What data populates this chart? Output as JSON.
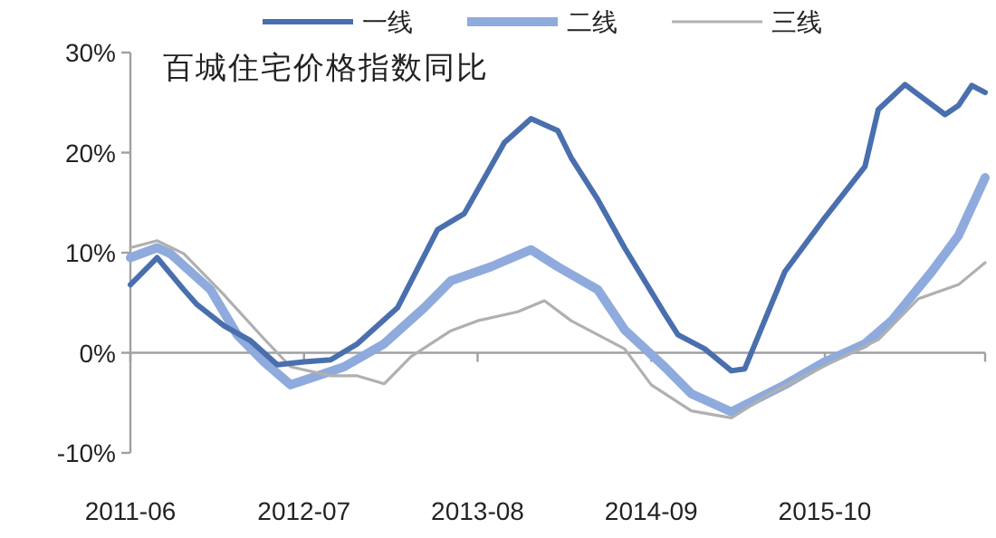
{
  "chart_data": {
    "type": "line",
    "title": "百城住宅价格指数同比",
    "legend": "top",
    "xlim": [
      "2011-06",
      "2016-10"
    ],
    "xticks": [
      "2011-06",
      "2012-07",
      "2013-08",
      "2014-09",
      "2015-10"
    ],
    "ylim": [
      -10,
      30
    ],
    "yticks": [
      {
        "value": -10,
        "label": "-10%"
      },
      {
        "value": 0,
        "label": "0%"
      },
      {
        "value": 10,
        "label": "10%"
      },
      {
        "value": 20,
        "label": "20%"
      },
      {
        "value": 30,
        "label": "30%"
      }
    ],
    "series": [
      {
        "name": "一线",
        "color": "#4a6fae",
        "x": [
          "2011-06",
          "2011-08",
          "2011-10",
          "2011-11",
          "2012-01",
          "2012-03",
          "2012-05",
          "2012-07",
          "2012-09",
          "2012-11",
          "2013-02",
          "2013-05",
          "2013-07",
          "2013-10",
          "2013-12",
          "2014-02",
          "2014-03",
          "2014-05",
          "2014-07",
          "2014-10",
          "2014-11",
          "2015-01",
          "2015-03",
          "2015-04",
          "2015-07",
          "2015-10",
          "2016-01",
          "2016-02",
          "2016-04",
          "2016-07",
          "2016-08",
          "2016-09",
          "2016-10"
        ],
        "values": [
          6.8,
          9.5,
          6.3,
          4.8,
          2.7,
          1.2,
          -1.2,
          -0.9,
          -0.7,
          0.9,
          4.5,
          12.3,
          13.9,
          21,
          23.4,
          22.2,
          19.5,
          15.3,
          10.5,
          3.9,
          1.8,
          0.4,
          -1.8,
          -1.6,
          8.1,
          13.5,
          18.6,
          24.3,
          26.8,
          23.8,
          24.7,
          26.7,
          26.0
        ]
      },
      {
        "name": "二线",
        "color": "#8faadc",
        "x": [
          "2011-06",
          "2011-08",
          "2011-09",
          "2011-12",
          "2012-02",
          "2012-04",
          "2012-06",
          "2012-08",
          "2012-10",
          "2013-01",
          "2013-04",
          "2013-06",
          "2013-09",
          "2013-12",
          "2014-02",
          "2014-05",
          "2014-07",
          "2014-10",
          "2014-12",
          "2015-03",
          "2015-07",
          "2015-10",
          "2016-01",
          "2016-03",
          "2016-06",
          "2016-08",
          "2016-10"
        ],
        "values": [
          9.5,
          10.5,
          9.9,
          6.3,
          1.8,
          -0.9,
          -3.2,
          -2.3,
          -1.4,
          0.9,
          4.5,
          7.2,
          8.6,
          10.3,
          8.6,
          6.3,
          2.3,
          -1.4,
          -4.1,
          -5.9,
          -3.2,
          -0.9,
          0.9,
          3.2,
          8.1,
          11.7,
          17.5
        ]
      },
      {
        "name": "三线",
        "color": "#b0b0b0",
        "x": [
          "2011-06",
          "2011-08",
          "2011-10",
          "2012-01",
          "2012-04",
          "2012-06",
          "2012-09",
          "2012-11",
          "2013-01",
          "2013-03",
          "2013-06",
          "2013-08",
          "2013-11",
          "2014-01",
          "2014-03",
          "2014-07",
          "2014-09",
          "2014-12",
          "2015-03",
          "2015-06",
          "2015-10",
          "2016-02",
          "2016-05",
          "2016-08",
          "2016-10"
        ],
        "values": [
          10.5,
          11.2,
          9.9,
          5.8,
          1.4,
          -1.4,
          -2.3,
          -2.3,
          -3.1,
          -0.4,
          2.2,
          3.2,
          4.1,
          5.2,
          3.2,
          0.4,
          -3.2,
          -5.8,
          -6.5,
          -4.0,
          -1.3,
          1.3,
          5.4,
          6.8,
          9.0
        ]
      }
    ]
  }
}
